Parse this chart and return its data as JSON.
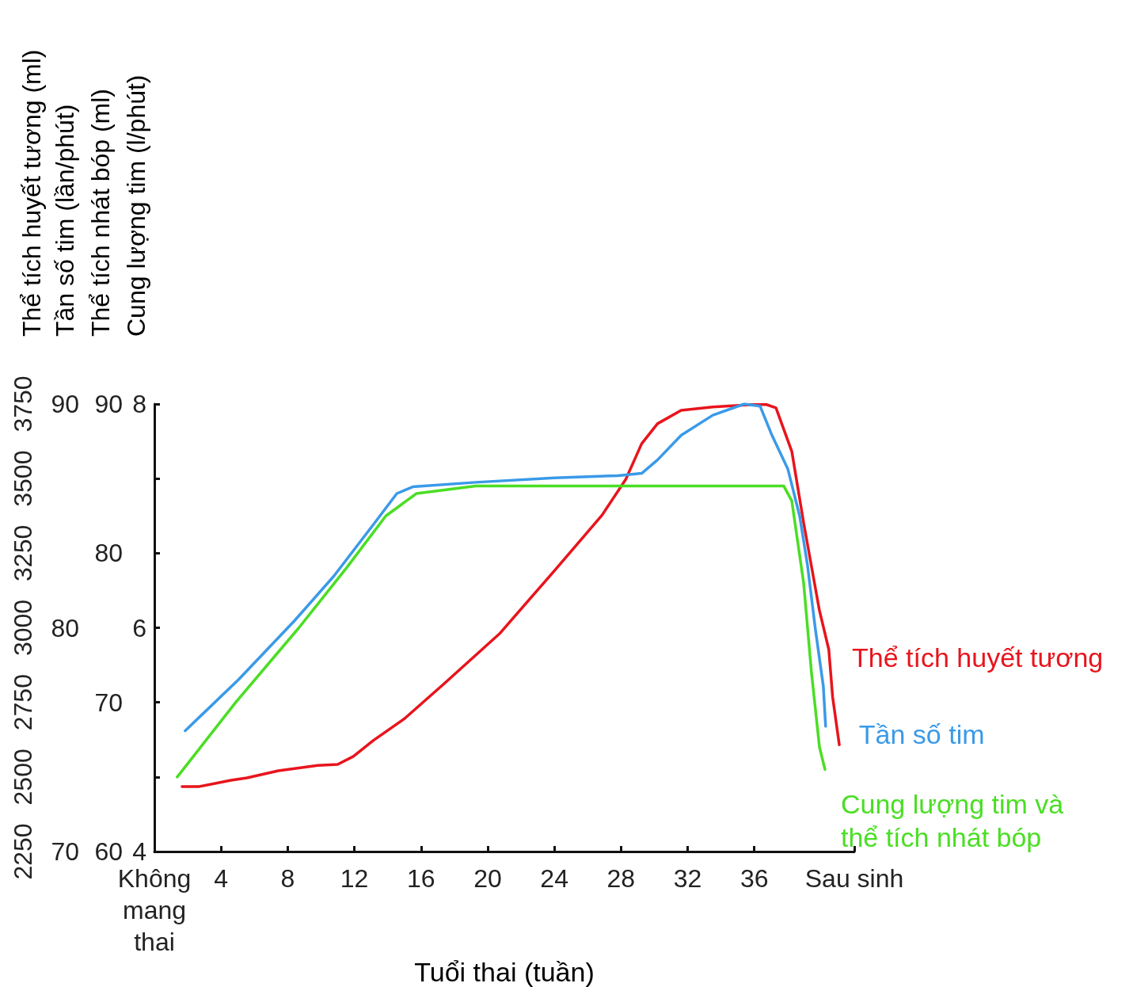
{
  "chart_data": {
    "type": "line",
    "ylabel": "Thể tích huyết tương (ml)",
    "y2label": "Tần số tim (lần/phút)",
    "y3label": "Thể tích nhát bóp (ml)",
    "annotations": [
      "Cung lượng tim (l/phút)",
      "8",
      "6",
      "4"
    ],
    "xlabel": "Tuổi thai (tuần)",
    "xlim": [
      0,
      42
    ],
    "xticks": [
      {
        "value": 0,
        "label": "Không mang thai"
      },
      4,
      8,
      12,
      16,
      20,
      24,
      28,
      32,
      36,
      {
        "value": 42,
        "label": "Sau sinh"
      }
    ],
    "ylim": [
      2250,
      3750
    ],
    "yticks": [
      2250,
      2500,
      2750,
      3000,
      3250,
      3500,
      3750
    ],
    "y2lim": [
      70,
      90
    ],
    "y2ticks": [
      70,
      80,
      90
    ],
    "y3lim": [
      60,
      90
    ],
    "y3ticks": [
      60,
      70,
      80,
      90
    ],
    "grid": false,
    "legend": false,
    "marker": "none",
    "line_style": "solid",
    "series": [
      {
        "name": "Thể tích huyết tương",
        "color": "#e8141c",
        "axis": "y",
        "x": [
          1.66,
          2.7,
          4.6,
          5.55,
          7.44,
          9.81,
          11.0,
          11.94,
          13.13,
          15.02,
          17.39,
          20.71,
          24.03,
          26.87,
          28.29,
          29.24,
          30.19,
          31.61,
          33.51,
          35.88,
          36.73,
          37.3,
          38.25,
          38.96,
          39.9,
          40.47,
          40.7,
          41.1
        ],
        "values": [
          2468,
          2468,
          2489,
          2497,
          2521,
          2539,
          2542,
          2569,
          2622,
          2696,
          2813,
          2980,
          3193,
          3378,
          3498,
          3617,
          3684,
          3729,
          3740,
          3748,
          3748,
          3737,
          3591,
          3352,
          3060,
          2927,
          2768,
          2608
        ]
      },
      {
        "name": "Tần số tim",
        "color": "#3a9ae8",
        "axis": "y2",
        "x": [
          1.85,
          5.07,
          8.39,
          10.76,
          13.13,
          14.55,
          15.5,
          19.29,
          24.03,
          27.82,
          29.24,
          30.19,
          31.61,
          33.51,
          35.4,
          36.35,
          37.06,
          38.01,
          38.72,
          39.19,
          39.67,
          40.14,
          40.28
        ],
        "values": [
          75.4,
          77.7,
          80.3,
          82.3,
          84.6,
          86.0,
          86.3,
          86.5,
          86.7,
          86.8,
          86.9,
          87.5,
          88.6,
          89.5,
          90.0,
          89.9,
          88.6,
          87.1,
          85.0,
          82.8,
          79.9,
          77.4,
          75.6
        ]
      },
      {
        "name": "Cung lượng tim và\nthể tích nhát bóp",
        "color": "#4ade24",
        "axis": "y3",
        "x": [
          1.37,
          4.88,
          8.67,
          11.52,
          13.89,
          15.73,
          19.29,
          24.03,
          28.77,
          32.32,
          35.88,
          37.77,
          38.25,
          38.96,
          39.43,
          39.91,
          40.24
        ],
        "values": [
          65,
          70,
          75,
          79,
          82.5,
          84,
          84.5,
          84.5,
          84.5,
          84.5,
          84.5,
          84.5,
          83.5,
          78,
          72,
          67,
          65.5
        ]
      }
    ]
  }
}
